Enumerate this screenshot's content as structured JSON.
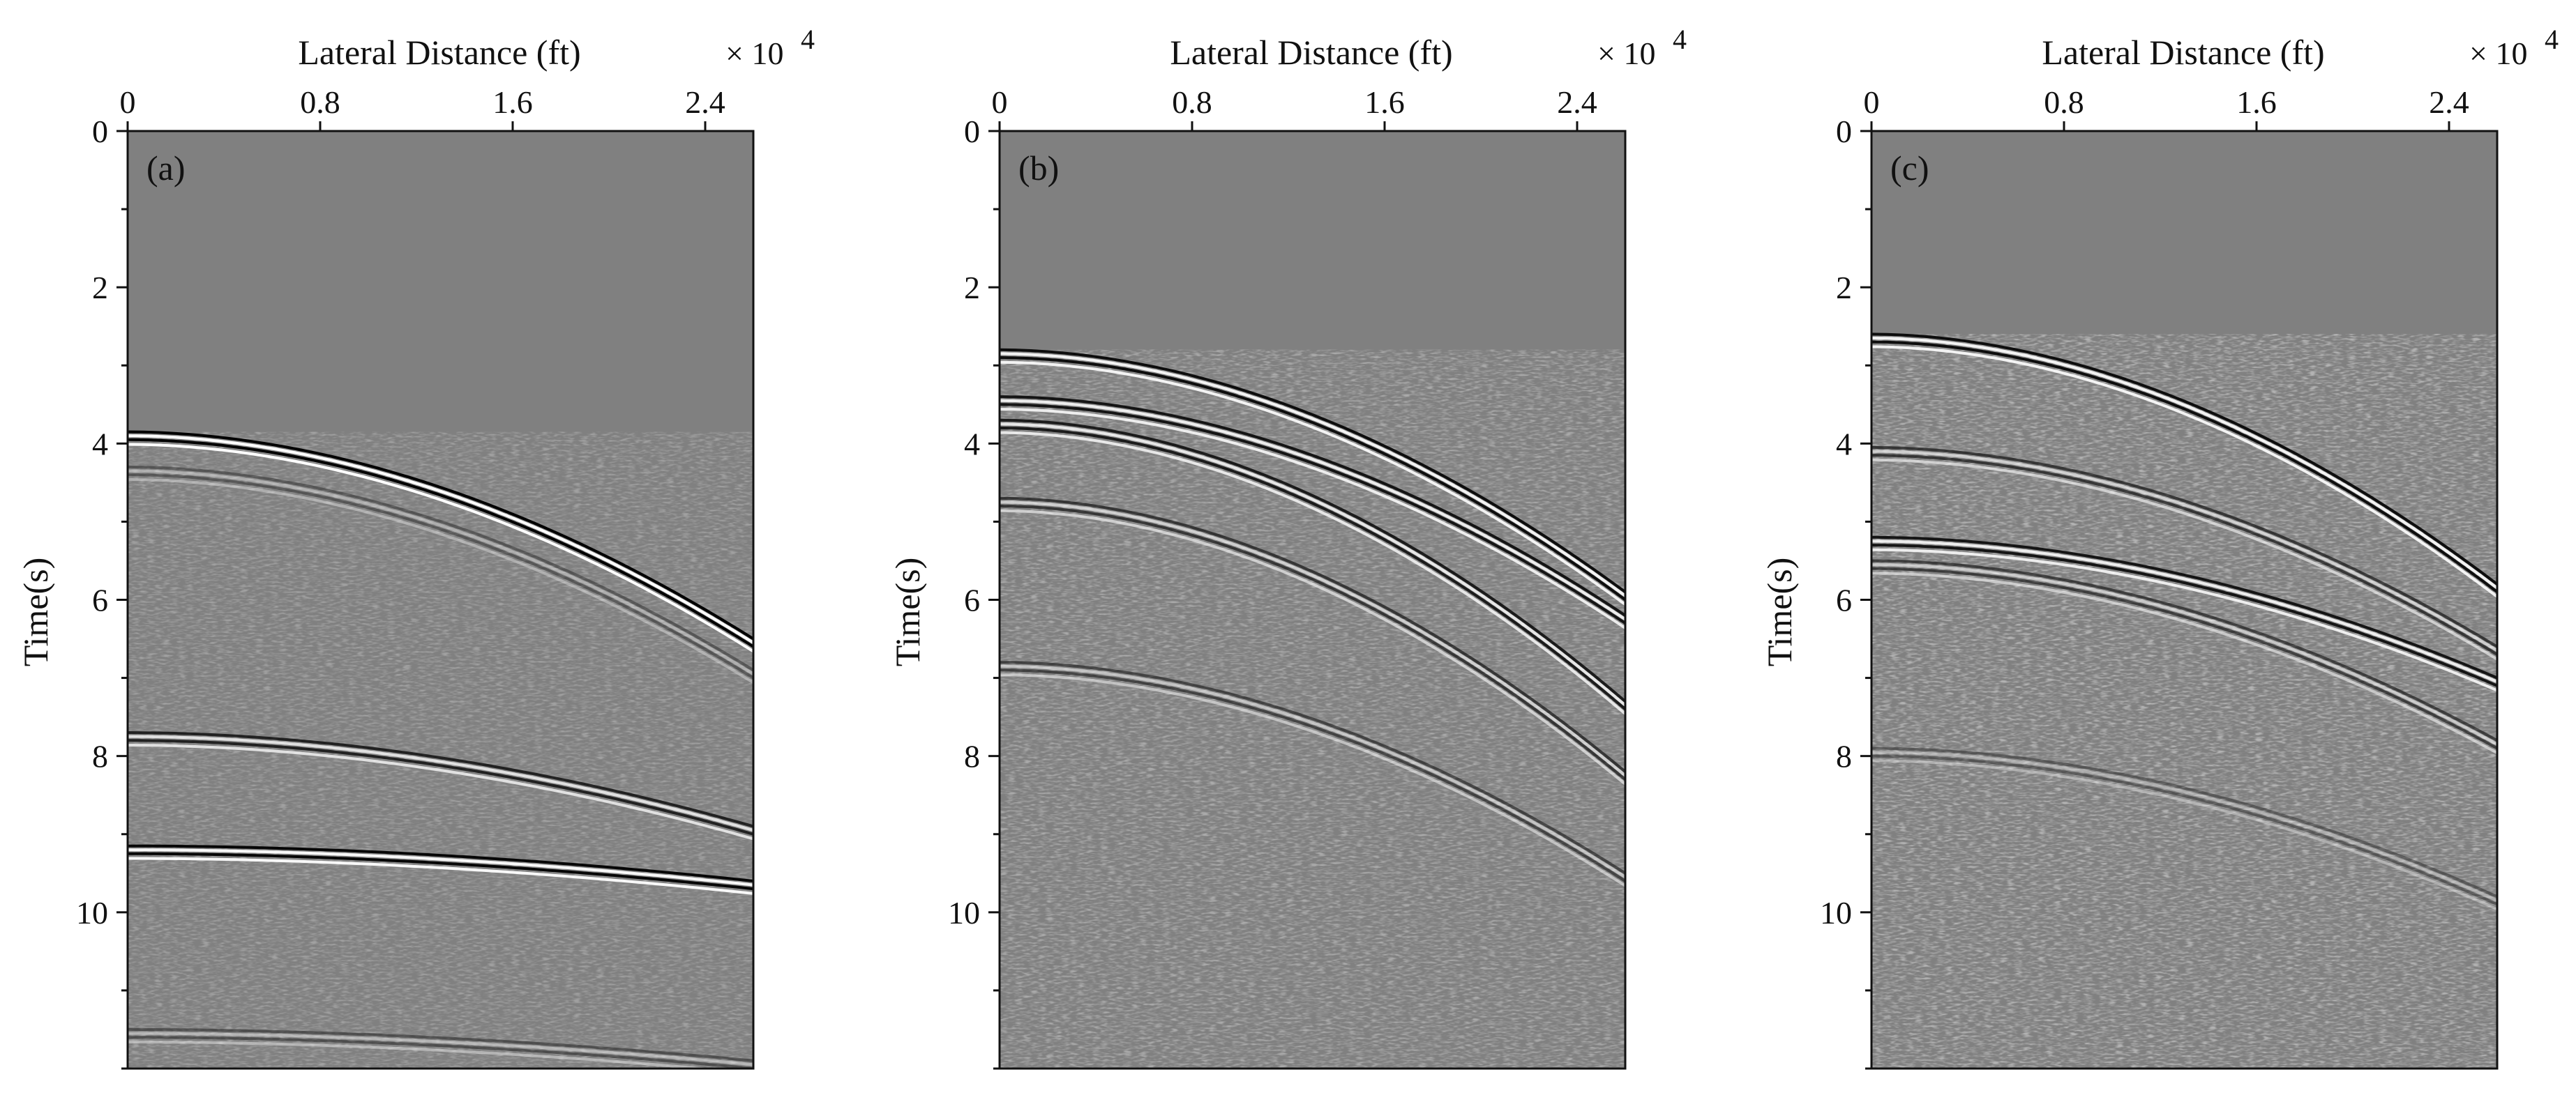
{
  "chart_data": [
    {
      "type": "heatmap",
      "panel_label": "(a)",
      "xlabel": "Lateral Distance (ft)",
      "ylabel": "Time(s)",
      "x_multiplier": {
        "base": "× 10",
        "exponent": "4"
      },
      "x_ticks": [
        0,
        0.8,
        1.6,
        2.4
      ],
      "x_tick_labels": [
        "0",
        "0.8",
        "1.6",
        "2.4"
      ],
      "xlim": [
        0,
        2.6
      ],
      "y_ticks": [
        0,
        2,
        4,
        6,
        8,
        10
      ],
      "y_tick_labels": [
        "0",
        "2",
        "4",
        "6",
        "8",
        "10"
      ],
      "ylim": [
        0,
        12
      ],
      "colormap": "gray",
      "background_color": "#808080",
      "events": [
        {
          "t0": 3.85,
          "t_end": 6.5,
          "amplitude": 1.0
        },
        {
          "t0": 4.3,
          "t_end": 6.9,
          "amplitude": 0.35
        },
        {
          "t0": 7.7,
          "t_end": 8.9,
          "amplitude": 0.75
        },
        {
          "t0": 9.15,
          "t_end": 9.6,
          "amplitude": 0.95
        },
        {
          "t0": 11.5,
          "t_end": 11.9,
          "amplitude": 0.4
        }
      ]
    },
    {
      "type": "heatmap",
      "panel_label": "(b)",
      "xlabel": "Lateral Distance (ft)",
      "ylabel": "Time(s)",
      "x_multiplier": {
        "base": "× 10",
        "exponent": "4"
      },
      "x_ticks": [
        0,
        0.8,
        1.6,
        2.4
      ],
      "x_tick_labels": [
        "0",
        "0.8",
        "1.6",
        "2.4"
      ],
      "xlim": [
        0,
        2.6
      ],
      "y_ticks": [
        0,
        2,
        4,
        6,
        8,
        10
      ],
      "y_tick_labels": [
        "0",
        "2",
        "4",
        "6",
        "8",
        "10"
      ],
      "ylim": [
        0,
        12
      ],
      "colormap": "gray",
      "background_color": "#808080",
      "events": [
        {
          "t0": 2.8,
          "t_end": 5.9,
          "amplitude": 0.9
        },
        {
          "t0": 3.4,
          "t_end": 6.2,
          "amplitude": 0.85
        },
        {
          "t0": 3.7,
          "t_end": 7.3,
          "amplitude": 0.8
        },
        {
          "t0": 4.7,
          "t_end": 8.2,
          "amplitude": 0.6
        },
        {
          "t0": 6.8,
          "t_end": 9.5,
          "amplitude": 0.5
        }
      ]
    },
    {
      "type": "heatmap",
      "panel_label": "(c)",
      "xlabel": "Lateral Distance (ft)",
      "ylabel": "Time(s)",
      "x_multiplier": {
        "base": "× 10",
        "exponent": "4"
      },
      "x_ticks": [
        0,
        0.8,
        1.6,
        2.4
      ],
      "x_tick_labels": [
        "0",
        "0.8",
        "1.6",
        "2.4"
      ],
      "xlim": [
        0,
        2.6
      ],
      "y_ticks": [
        0,
        2,
        4,
        6,
        8,
        10
      ],
      "y_tick_labels": [
        "0",
        "2",
        "4",
        "6",
        "8",
        "10"
      ],
      "ylim": [
        0,
        12
      ],
      "colormap": "gray",
      "background_color": "#808080",
      "events": [
        {
          "t0": 2.6,
          "t_end": 5.8,
          "amplitude": 0.9
        },
        {
          "t0": 4.05,
          "t_end": 6.6,
          "amplitude": 0.6
        },
        {
          "t0": 5.2,
          "t_end": 7.0,
          "amplitude": 0.85
        },
        {
          "t0": 5.5,
          "t_end": 7.8,
          "amplitude": 0.55
        },
        {
          "t0": 7.9,
          "t_end": 9.8,
          "amplitude": 0.35
        }
      ]
    }
  ]
}
